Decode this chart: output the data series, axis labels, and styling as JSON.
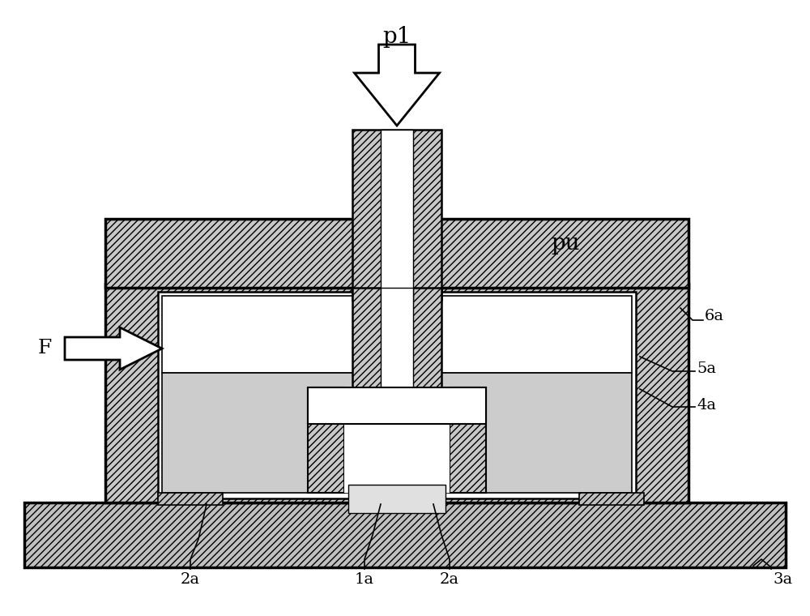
{
  "bg_color": "#ffffff",
  "ec": "#000000",
  "fc_hatch": "#cccccc",
  "fc_wave": "#cccccc",
  "fc_white": "#ffffff",
  "fc_base": "#c0c0c0",
  "lw_main": 2.5,
  "lw_inner": 1.8,
  "lw_thin": 1.2,
  "label_p1": "p1",
  "label_pu": "pu",
  "label_6a": "6a",
  "label_5a": "5a",
  "label_4a": "4a",
  "label_F": "F",
  "label_2a": "2a",
  "label_1a": "1a",
  "label_3a": "3a",
  "fs_main": 18,
  "fs_label": 14
}
